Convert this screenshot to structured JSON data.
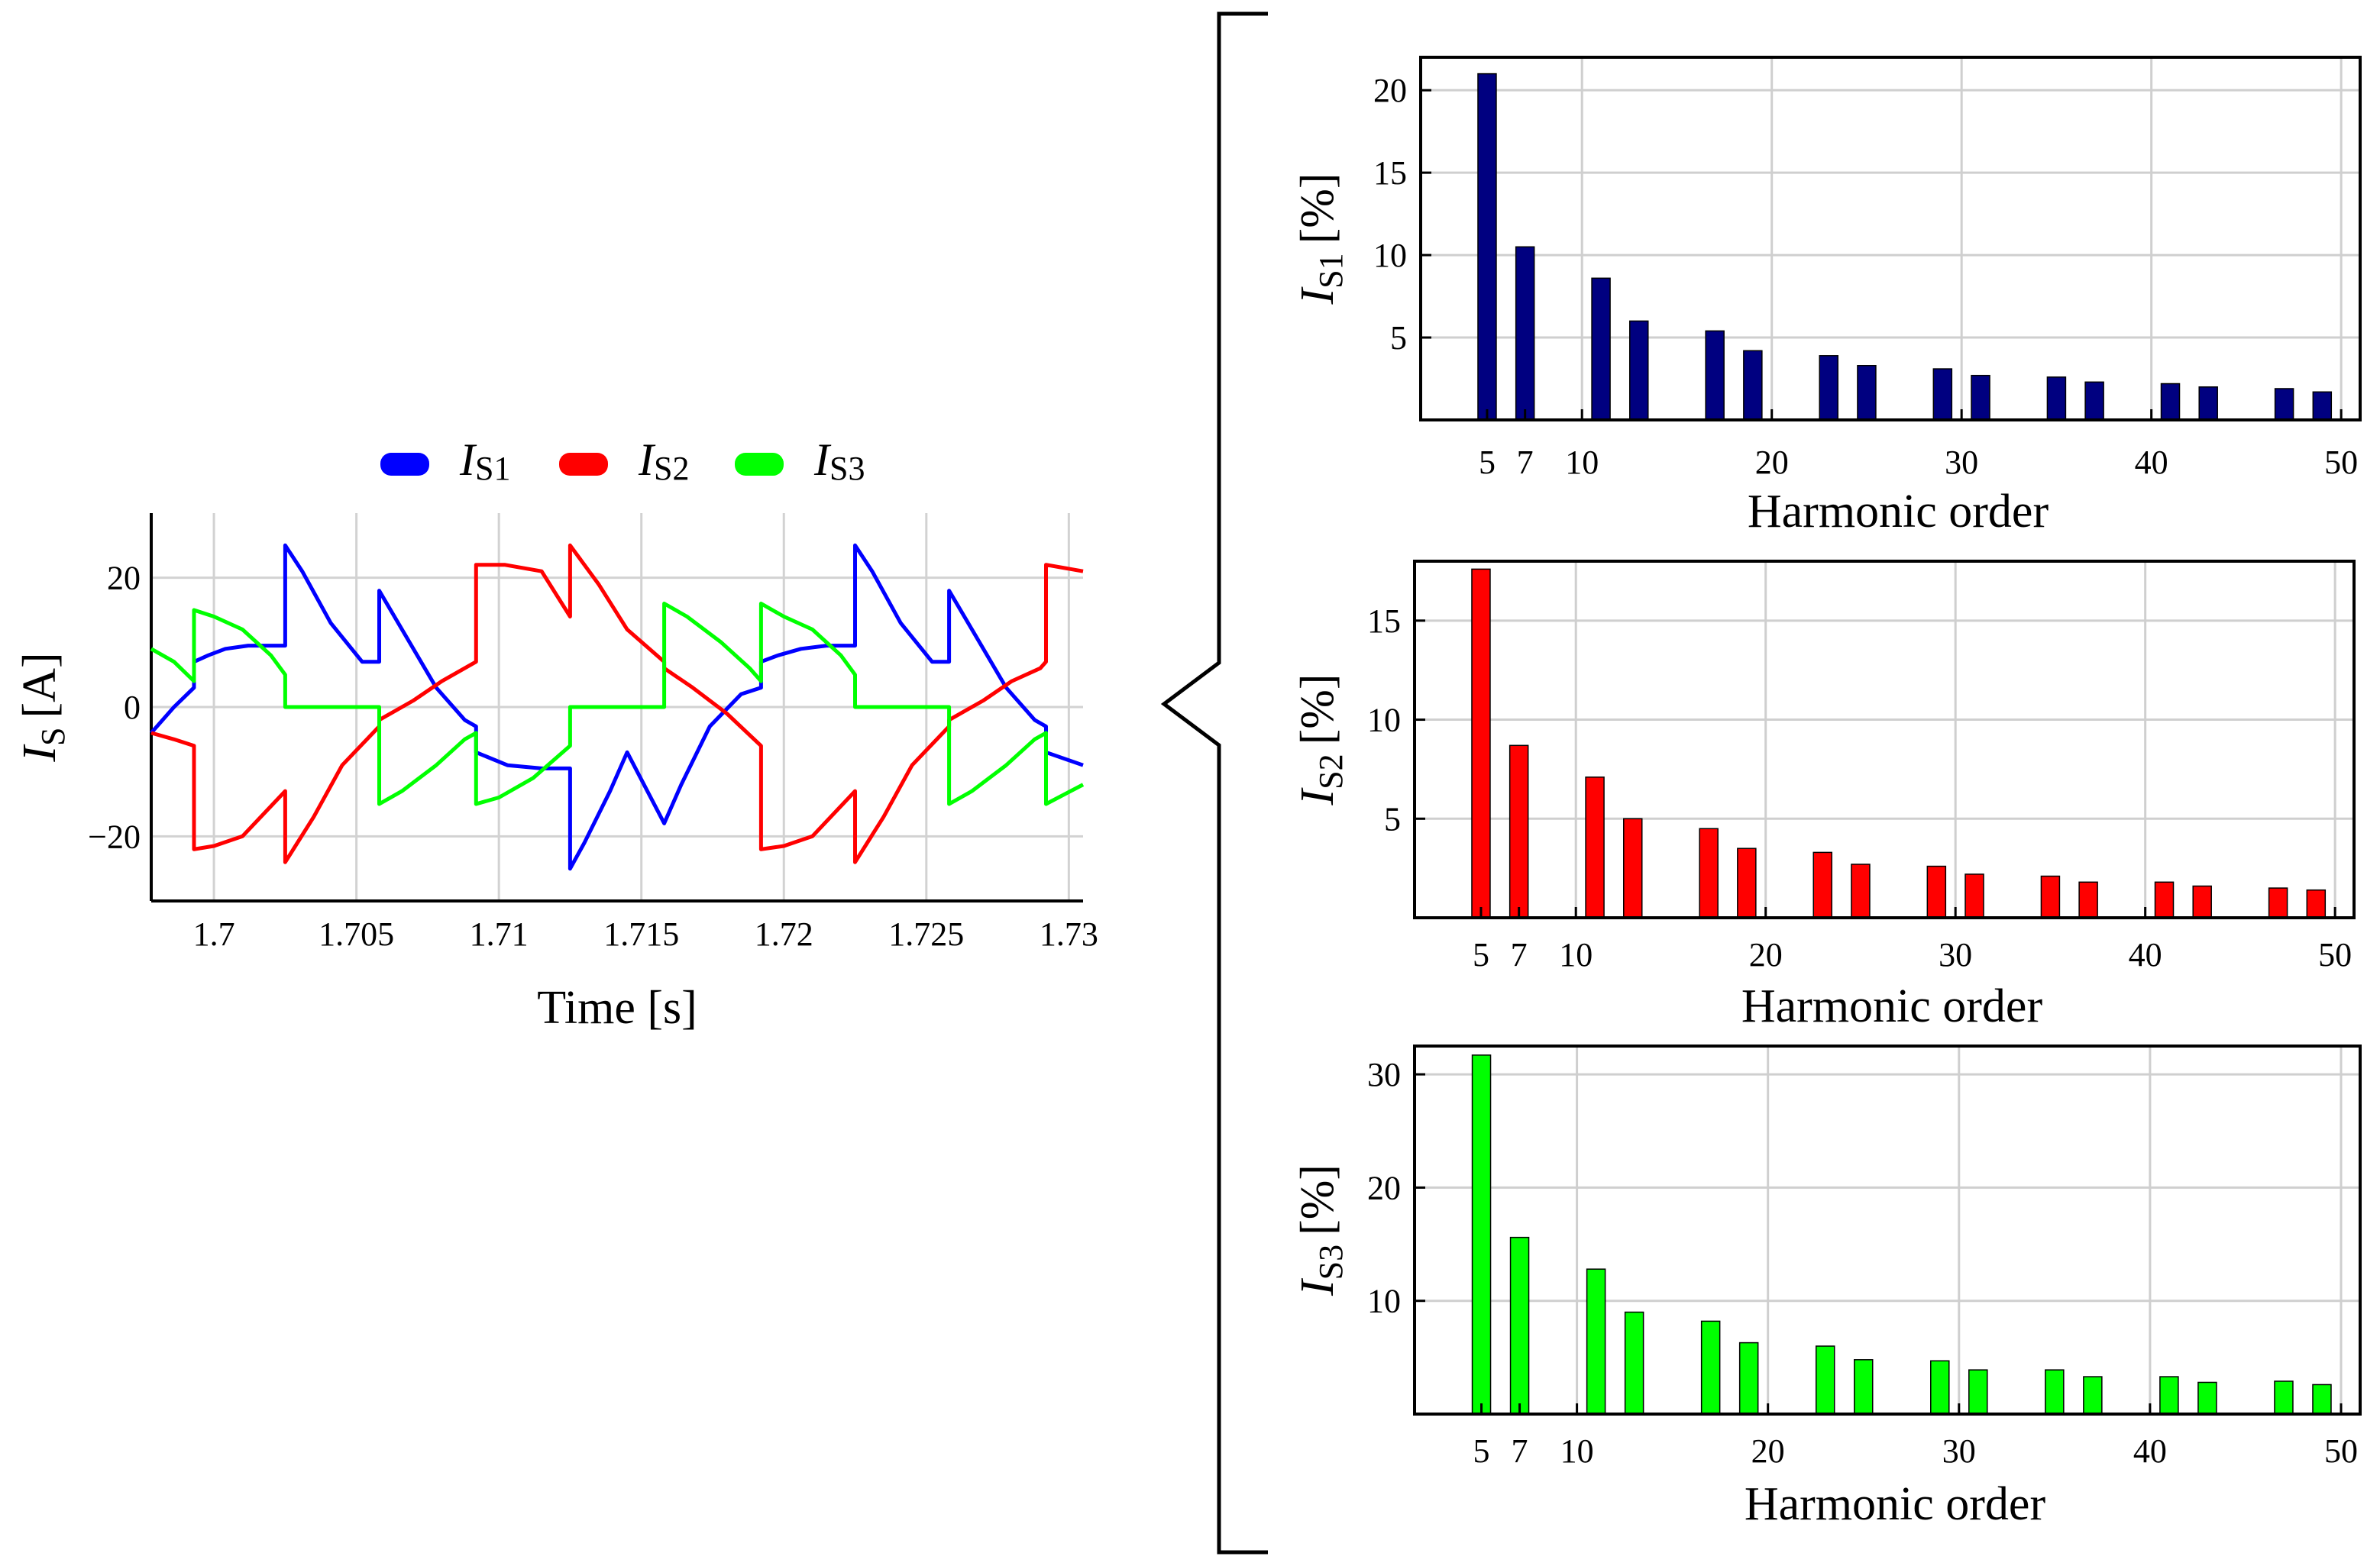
{
  "chart_data": [
    {
      "type": "line",
      "title": "",
      "xlabel": "Time [s]",
      "ylabel": {
        "symbol": "I",
        "subscript": "S",
        "unit": "[A]"
      },
      "xlim": [
        1.6978,
        1.7305
      ],
      "ylim": [
        -30,
        30
      ],
      "xticks": [
        1.7,
        1.705,
        1.71,
        1.715,
        1.72,
        1.725,
        1.73
      ],
      "xtick_labels": [
        "1.7",
        "1.705",
        "1.71",
        "1.715",
        "1.72",
        "1.725",
        "1.73"
      ],
      "yticks": [
        -20,
        0,
        20
      ],
      "ytick_labels": [
        "−20",
        "0",
        "20"
      ],
      "grid": true,
      "legend": {
        "placement": "top"
      },
      "series": [
        {
          "name": "I_S1",
          "symbol": "I",
          "subscript": "S1",
          "color": "#0000ff",
          "x": [
            1.6978,
            1.6986,
            1.6993,
            1.6993,
            1.6998,
            1.7004,
            1.7012,
            1.702,
            1.7025,
            1.7025,
            1.7031,
            1.7041,
            1.7052,
            1.7058,
            1.7058,
            1.7066,
            1.7078,
            1.7088,
            1.7092,
            1.7092,
            1.7103,
            1.7115,
            1.7125,
            1.7125,
            1.713,
            1.7139,
            1.7145,
            1.7158,
            1.7158,
            1.7164,
            1.7174,
            1.7185,
            1.7192,
            1.7192,
            1.7198,
            1.7206,
            1.7215,
            1.7225,
            1.7225,
            1.7231,
            1.7241,
            1.7252,
            1.7258,
            1.7258,
            1.7266,
            1.7278,
            1.7288,
            1.7292,
            1.7292,
            1.7305
          ],
          "y": [
            -4,
            0,
            3,
            7,
            8,
            9,
            9.5,
            9.5,
            9.5,
            25,
            21,
            13,
            7,
            7,
            18,
            12,
            3,
            -2,
            -3,
            -7,
            -9,
            -9.5,
            -9.5,
            -25,
            -21,
            -13,
            -7,
            -18,
            -18,
            -12,
            -3,
            2,
            3,
            7,
            8,
            9,
            9.5,
            9.5,
            25,
            21,
            13,
            7,
            7,
            18,
            12,
            3,
            -2,
            -3,
            -7,
            -9
          ]
        },
        {
          "name": "I_S2",
          "symbol": "I",
          "subscript": "S2",
          "color": "#ff0000",
          "x": [
            1.6978,
            1.6986,
            1.6993,
            1.6993,
            1.7,
            1.701,
            1.7025,
            1.7025,
            1.7035,
            1.7045,
            1.7058,
            1.7058,
            1.707,
            1.708,
            1.7092,
            1.7092,
            1.7102,
            1.7115,
            1.7125,
            1.7125,
            1.7135,
            1.7145,
            1.7158,
            1.7158,
            1.7168,
            1.718,
            1.7192,
            1.7192,
            1.72,
            1.721,
            1.7225,
            1.7225,
            1.7235,
            1.7245,
            1.7258,
            1.7258,
            1.727,
            1.728,
            1.729,
            1.7292,
            1.7292,
            1.7305
          ],
          "y": [
            -4,
            -5,
            -6,
            -22,
            -21.5,
            -20,
            -13,
            -24,
            -17,
            -9,
            -3,
            -2,
            1,
            4,
            7,
            22,
            22,
            21,
            14,
            25,
            19,
            12,
            7,
            6,
            3,
            -1,
            -6,
            -22,
            -21.5,
            -20,
            -13,
            -24,
            -17,
            -9,
            -3,
            -2,
            1,
            4,
            6,
            7,
            22,
            21
          ]
        },
        {
          "name": "I_S3",
          "symbol": "I",
          "subscript": "S3",
          "color": "#00ff00",
          "x": [
            1.6978,
            1.6986,
            1.6993,
            1.6993,
            1.7,
            1.701,
            1.702,
            1.7025,
            1.7025,
            1.7058,
            1.7058,
            1.7066,
            1.7078,
            1.7088,
            1.7092,
            1.7092,
            1.71,
            1.7112,
            1.7125,
            1.7125,
            1.7158,
            1.7158,
            1.7166,
            1.7178,
            1.7188,
            1.7192,
            1.7192,
            1.72,
            1.721,
            1.722,
            1.7225,
            1.7225,
            1.7258,
            1.7258,
            1.7266,
            1.7278,
            1.7288,
            1.7292,
            1.7292,
            1.7305
          ],
          "y": [
            9,
            7,
            4,
            15,
            14,
            12,
            8,
            5,
            0,
            0,
            -15,
            -13,
            -9,
            -5,
            -4,
            -15,
            -14,
            -11,
            -6,
            0,
            0,
            16,
            14,
            10,
            6,
            4,
            16,
            14,
            12,
            8,
            5,
            0,
            0,
            -15,
            -13,
            -9,
            -5,
            -4,
            -15,
            -12
          ]
        }
      ]
    },
    {
      "type": "bar",
      "title": "",
      "xlabel": "Harmonic order",
      "ylabel": {
        "symbol": "I",
        "subscript": "S1",
        "unit": "[%]"
      },
      "color": "#000080",
      "xlim": [
        1.5,
        51
      ],
      "ylim": [
        0,
        22
      ],
      "xticks": [
        5,
        7,
        10,
        20,
        30,
        40,
        50
      ],
      "yticks": [
        5,
        10,
        15,
        20
      ],
      "grid": true,
      "categories": [
        5,
        7,
        11,
        13,
        17,
        19,
        23,
        25,
        29,
        31,
        35,
        37,
        41,
        43,
        47,
        49
      ],
      "values": [
        21,
        10.5,
        8.6,
        6,
        5.4,
        4.2,
        3.9,
        3.3,
        3.1,
        2.7,
        2.6,
        2.3,
        2.2,
        2,
        1.9,
        1.7
      ]
    },
    {
      "type": "bar",
      "title": "",
      "xlabel": "Harmonic order",
      "ylabel": {
        "symbol": "I",
        "subscript": "S2",
        "unit": "[%]"
      },
      "color": "#ff0000",
      "xlim": [
        1.5,
        51
      ],
      "ylim": [
        0,
        18
      ],
      "xticks": [
        5,
        7,
        10,
        20,
        30,
        40,
        50
      ],
      "yticks": [
        5,
        10,
        15
      ],
      "grid": true,
      "categories": [
        5,
        7,
        11,
        13,
        17,
        19,
        23,
        25,
        29,
        31,
        35,
        37,
        41,
        43,
        47,
        49
      ],
      "values": [
        17.6,
        8.7,
        7.1,
        5,
        4.5,
        3.5,
        3.3,
        2.7,
        2.6,
        2.2,
        2.1,
        1.8,
        1.8,
        1.6,
        1.5,
        1.4
      ]
    },
    {
      "type": "bar",
      "title": "",
      "xlabel": "Harmonic order",
      "ylabel": {
        "symbol": "I",
        "subscript": "S3",
        "unit": "[%]"
      },
      "color": "#00ff00",
      "xlim": [
        1.5,
        51
      ],
      "ylim": [
        0,
        32.5
      ],
      "xticks": [
        5,
        7,
        10,
        20,
        30,
        40,
        50
      ],
      "yticks": [
        10,
        20,
        30
      ],
      "grid": true,
      "categories": [
        5,
        7,
        11,
        13,
        17,
        19,
        23,
        25,
        29,
        31,
        35,
        37,
        41,
        43,
        47,
        49
      ],
      "values": [
        31.7,
        15.6,
        12.8,
        9,
        8.2,
        6.3,
        6,
        4.8,
        4.7,
        3.9,
        3.9,
        3.3,
        3.3,
        2.8,
        2.9,
        2.6
      ]
    }
  ]
}
